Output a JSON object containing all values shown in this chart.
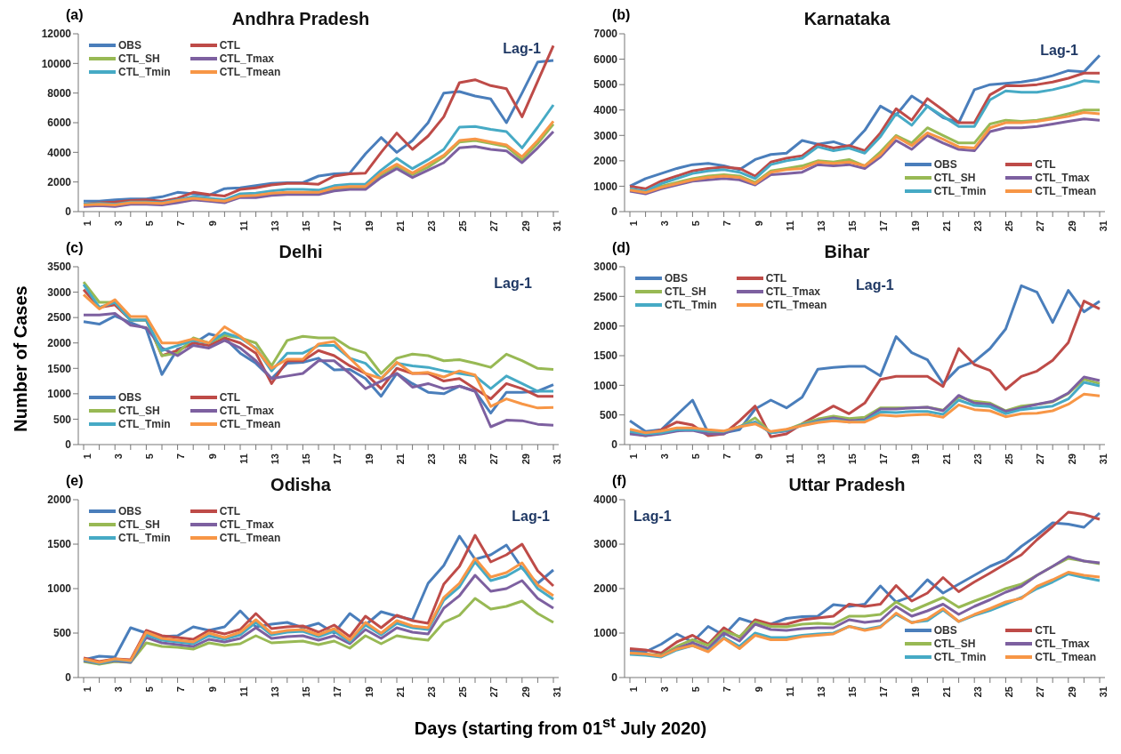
{
  "chart_data": [
    {
      "type": "line",
      "title": "Andhra Pradesh",
      "annotations": [
        "(a)",
        "Lag-1"
      ],
      "legend": "top left",
      "categories": [
        "1",
        null,
        "3",
        null,
        "5",
        null,
        "7",
        null,
        "9",
        null,
        "11",
        null,
        "13",
        null,
        "15",
        null,
        "17",
        null,
        "19",
        null,
        "21",
        null,
        "23",
        null,
        "25",
        null,
        "27",
        null,
        "29",
        null,
        "31"
      ],
      "ylim": [
        0,
        12000
      ],
      "yticks": [
        0,
        2000,
        4000,
        6000,
        8000,
        10000,
        12000
      ],
      "series": [
        {
          "name": "OBS",
          "color": "#4a7ebb",
          "values": [
            700,
            700,
            800,
            850,
            850,
            1000,
            1300,
            1200,
            1100,
            1550,
            1600,
            1750,
            1900,
            1950,
            1950,
            2400,
            2550,
            2600,
            3900,
            5000,
            4000,
            4800,
            6000,
            8000,
            8100,
            7800,
            7600,
            6000,
            8000,
            10100,
            10200
          ]
        },
        {
          "name": "CTL",
          "color": "#be4b48",
          "values": [
            500,
            600,
            650,
            750,
            800,
            700,
            900,
            1300,
            1150,
            1050,
            1500,
            1600,
            1800,
            1900,
            1900,
            1850,
            2400,
            2550,
            2600,
            4000,
            5300,
            4200,
            5100,
            6400,
            8700,
            8900,
            8500,
            8300,
            6400,
            8800,
            11200
          ]
        },
        {
          "name": "CTL_SH",
          "color": "#98b954",
          "values": [
            400,
            450,
            400,
            550,
            550,
            500,
            650,
            850,
            750,
            650,
            1000,
            1000,
            1150,
            1250,
            1250,
            1250,
            1500,
            1600,
            1600,
            2500,
            3100,
            2500,
            3000,
            3700,
            4700,
            4800,
            4600,
            4400,
            3500,
            4600,
            5900
          ]
        },
        {
          "name": "CTL_Tmax",
          "color": "#7d60a0",
          "values": [
            350,
            400,
            350,
            500,
            500,
            450,
            600,
            800,
            700,
            600,
            950,
            950,
            1100,
            1150,
            1150,
            1150,
            1400,
            1500,
            1500,
            2300,
            2900,
            2300,
            2800,
            3300,
            4300,
            4400,
            4200,
            4100,
            3300,
            4300,
            5400
          ]
        },
        {
          "name": "CTL_Tmin",
          "color": "#46aac5",
          "values": [
            500,
            550,
            500,
            650,
            650,
            600,
            800,
            1000,
            900,
            800,
            1200,
            1250,
            1400,
            1500,
            1500,
            1450,
            1750,
            1850,
            1850,
            2800,
            3600,
            2900,
            3500,
            4200,
            5700,
            5750,
            5550,
            5400,
            4300,
            5700,
            7200
          ]
        },
        {
          "name": "CTL_Tmean",
          "color": "#f79646",
          "values": [
            450,
            500,
            450,
            600,
            600,
            550,
            750,
            900,
            800,
            700,
            1050,
            1100,
            1250,
            1300,
            1300,
            1300,
            1600,
            1700,
            1700,
            2600,
            3200,
            2600,
            3200,
            3800,
            4800,
            4900,
            4700,
            4500,
            3700,
            4800,
            6100
          ]
        }
      ]
    },
    {
      "type": "line",
      "title": "Karnataka",
      "annotations": [
        "(b)",
        "Lag-1"
      ],
      "legend": "bottom right",
      "categories": [
        "1",
        null,
        "3",
        null,
        "5",
        null,
        "7",
        null,
        "9",
        null,
        "11",
        null,
        "13",
        null,
        "15",
        null,
        "17",
        null,
        "19",
        null,
        "21",
        null,
        "23",
        null,
        "25",
        null,
        "27",
        null,
        "29",
        null,
        "31"
      ],
      "ylim": [
        0,
        7000
      ],
      "yticks": [
        0,
        1000,
        2000,
        3000,
        4000,
        5000,
        6000,
        7000
      ],
      "series": [
        {
          "name": "OBS",
          "color": "#4a7ebb",
          "values": [
            1000,
            1300,
            1500,
            1700,
            1850,
            1900,
            1800,
            1650,
            2050,
            2250,
            2300,
            2800,
            2650,
            2750,
            2550,
            3200,
            4150,
            3800,
            4550,
            4150,
            3700,
            3500,
            4800,
            5000,
            5050,
            5100,
            5200,
            5350,
            5550,
            5500,
            6150
          ]
        },
        {
          "name": "CTL",
          "color": "#be4b48",
          "values": [
            1000,
            900,
            1200,
            1400,
            1600,
            1700,
            1750,
            1700,
            1400,
            1950,
            2100,
            2200,
            2650,
            2500,
            2600,
            2400,
            3100,
            4050,
            3600,
            4450,
            4000,
            3500,
            3500,
            4600,
            4950,
            4950,
            5000,
            5100,
            5250,
            5450,
            5450
          ]
        },
        {
          "name": "CTL_SH",
          "color": "#98b954",
          "values": [
            850,
            750,
            1000,
            1150,
            1300,
            1400,
            1450,
            1400,
            1150,
            1600,
            1700,
            1800,
            2000,
            1950,
            2050,
            1800,
            2350,
            3000,
            2700,
            3300,
            3000,
            2700,
            2700,
            3450,
            3600,
            3550,
            3600,
            3700,
            3850,
            4000,
            4000
          ]
        },
        {
          "name": "CTL_Tmax",
          "color": "#7d60a0",
          "values": [
            800,
            700,
            900,
            1050,
            1200,
            1250,
            1300,
            1250,
            1050,
            1450,
            1500,
            1550,
            1850,
            1800,
            1850,
            1700,
            2150,
            2800,
            2450,
            3000,
            2700,
            2450,
            2400,
            3150,
            3300,
            3300,
            3350,
            3450,
            3550,
            3650,
            3600
          ]
        },
        {
          "name": "CTL_Tmin",
          "color": "#46aac5",
          "values": [
            900,
            800,
            1100,
            1300,
            1500,
            1600,
            1650,
            1550,
            1300,
            1850,
            2000,
            2100,
            2550,
            2400,
            2500,
            2300,
            2950,
            3850,
            3400,
            4150,
            3750,
            3350,
            3350,
            4400,
            4750,
            4700,
            4700,
            4800,
            4950,
            5150,
            5100
          ]
        },
        {
          "name": "CTL_Tmean",
          "color": "#f79646",
          "values": [
            850,
            750,
            950,
            1100,
            1250,
            1350,
            1400,
            1350,
            1100,
            1550,
            1650,
            1700,
            1950,
            1900,
            1950,
            1800,
            2250,
            2950,
            2600,
            3100,
            2850,
            2550,
            2500,
            3300,
            3500,
            3500,
            3550,
            3650,
            3750,
            3900,
            3850
          ]
        }
      ]
    },
    {
      "type": "line",
      "title": "Delhi",
      "annotations": [
        "(c)",
        "Lag-1"
      ],
      "legend": "bottom left",
      "ylabel": "Number of Cases",
      "categories": [
        "1",
        null,
        "3",
        null,
        "5",
        null,
        "7",
        null,
        "9",
        null,
        "11",
        null,
        "13",
        null,
        "15",
        null,
        "17",
        null,
        "19",
        null,
        "21",
        null,
        "23",
        null,
        "25",
        null,
        "27",
        null,
        "29",
        null,
        "31"
      ],
      "ylim": [
        0,
        3500
      ],
      "yticks": [
        0,
        500,
        1000,
        1500,
        2000,
        2500,
        3000,
        3500
      ],
      "series": [
        {
          "name": "OBS",
          "color": "#4a7ebb",
          "values": [
            2420,
            2370,
            2530,
            2400,
            2280,
            1380,
            1880,
            1980,
            2180,
            2100,
            1800,
            1600,
            1300,
            1600,
            1620,
            1700,
            1470,
            1480,
            1300,
            950,
            1400,
            1200,
            1030,
            1000,
            1150,
            1050,
            620,
            1030,
            1030,
            1050,
            1180
          ]
        },
        {
          "name": "CTL",
          "color": "#be4b48",
          "values": [
            3050,
            2700,
            2750,
            2450,
            2450,
            1750,
            1850,
            2000,
            1950,
            2100,
            2000,
            1800,
            1200,
            1650,
            1650,
            1850,
            1750,
            1550,
            1400,
            1100,
            1500,
            1400,
            1400,
            1250,
            1300,
            1100,
            900,
            1200,
            1100,
            950,
            950
          ]
        },
        {
          "name": "CTL_SH",
          "color": "#98b954",
          "values": [
            3200,
            2800,
            2800,
            2450,
            2450,
            1750,
            1800,
            2100,
            2000,
            2150,
            2100,
            2000,
            1550,
            2050,
            2130,
            2100,
            2100,
            1900,
            1800,
            1400,
            1700,
            1780,
            1750,
            1650,
            1670,
            1600,
            1520,
            1780,
            1650,
            1500,
            1480
          ]
        },
        {
          "name": "CTL_Tmax",
          "color": "#7d60a0",
          "values": [
            2550,
            2550,
            2580,
            2350,
            2300,
            1900,
            1750,
            1950,
            1900,
            2050,
            1900,
            1650,
            1300,
            1350,
            1400,
            1650,
            1650,
            1400,
            1100,
            1250,
            1400,
            1130,
            1200,
            1100,
            1150,
            1050,
            350,
            480,
            470,
            400,
            380
          ]
        },
        {
          "name": "CTL_Tmin",
          "color": "#46aac5",
          "values": [
            3150,
            2700,
            2800,
            2450,
            2450,
            1850,
            1950,
            2050,
            2000,
            2200,
            2100,
            1900,
            1450,
            1800,
            1800,
            1950,
            1950,
            1700,
            1600,
            1300,
            1600,
            1550,
            1520,
            1450,
            1400,
            1350,
            1100,
            1350,
            1200,
            1050,
            1050
          ]
        },
        {
          "name": "CTL_Tmean",
          "color": "#f79646",
          "values": [
            2950,
            2670,
            2850,
            2520,
            2520,
            2000,
            2000,
            2080,
            2000,
            2320,
            2130,
            1880,
            1500,
            1680,
            1680,
            1980,
            2030,
            1700,
            1400,
            1300,
            1620,
            1400,
            1420,
            1330,
            1450,
            1370,
            750,
            900,
            800,
            720,
            730
          ]
        }
      ]
    },
    {
      "type": "line",
      "title": "Bihar",
      "annotations": [
        "(d)",
        "Lag-1"
      ],
      "legend": "top left",
      "categories": [
        "1",
        null,
        "3",
        null,
        "5",
        null,
        "7",
        null,
        "9",
        null,
        "11",
        null,
        "13",
        null,
        "15",
        null,
        "17",
        null,
        "19",
        null,
        "21",
        null,
        "23",
        null,
        "25",
        null,
        "27",
        null,
        "29",
        null,
        "31"
      ],
      "ylim": [
        0,
        3000
      ],
      "yticks": [
        0,
        500,
        1000,
        1500,
        2000,
        2500,
        3000
      ],
      "series": [
        {
          "name": "OBS",
          "color": "#4a7ebb",
          "values": [
            400,
            220,
            250,
            500,
            750,
            200,
            200,
            250,
            600,
            750,
            620,
            800,
            1270,
            1300,
            1320,
            1320,
            1160,
            1820,
            1550,
            1430,
            1030,
            1300,
            1400,
            1620,
            1950,
            2680,
            2570,
            2060,
            2600,
            2240,
            2420
          ]
        },
        {
          "name": "CTL",
          "color": "#be4b48",
          "values": [
            200,
            180,
            250,
            380,
            330,
            150,
            180,
            400,
            650,
            130,
            180,
            350,
            500,
            650,
            520,
            700,
            1100,
            1150,
            1150,
            1150,
            980,
            1620,
            1350,
            1250,
            930,
            1150,
            1240,
            1420,
            1720,
            2420,
            2290
          ]
        },
        {
          "name": "CTL_SH",
          "color": "#98b954",
          "values": [
            200,
            150,
            200,
            250,
            260,
            200,
            200,
            300,
            450,
            200,
            250,
            350,
            430,
            480,
            440,
            460,
            620,
            620,
            620,
            630,
            580,
            800,
            730,
            700,
            570,
            650,
            680,
            720,
            860,
            1100,
            1030
          ]
        },
        {
          "name": "CTL_Tmax",
          "color": "#7d60a0",
          "values": [
            180,
            150,
            180,
            230,
            240,
            180,
            180,
            300,
            380,
            200,
            230,
            330,
            400,
            450,
            400,
            420,
            600,
            600,
            620,
            630,
            570,
            830,
            700,
            680,
            560,
            620,
            680,
            730,
            870,
            1140,
            1080
          ]
        },
        {
          "name": "CTL_Tmin",
          "color": "#46aac5",
          "values": [
            220,
            180,
            200,
            250,
            250,
            230,
            220,
            300,
            380,
            200,
            240,
            330,
            390,
            420,
            380,
            400,
            550,
            540,
            560,
            560,
            510,
            750,
            660,
            640,
            520,
            590,
            620,
            650,
            770,
            1050,
            990
          ]
        },
        {
          "name": "CTL_Tmean",
          "color": "#f79646",
          "values": [
            260,
            200,
            230,
            280,
            280,
            250,
            230,
            300,
            350,
            220,
            260,
            320,
            370,
            400,
            380,
            380,
            500,
            480,
            500,
            510,
            460,
            670,
            590,
            570,
            470,
            520,
            530,
            570,
            680,
            850,
            820
          ]
        }
      ]
    },
    {
      "type": "line",
      "title": "Odisha",
      "annotations": [
        "(e)",
        "Lag-1"
      ],
      "legend": "top left",
      "xlabel": "Days (starting from 01$^{st}$ July 2020)",
      "categories": [
        "1",
        null,
        "3",
        null,
        "5",
        null,
        "7",
        null,
        "9",
        null,
        "11",
        null,
        "13",
        null,
        "15",
        null,
        "17",
        null,
        "19",
        null,
        "21",
        null,
        "23",
        null,
        "25",
        null,
        "27",
        null,
        "29",
        null,
        "31"
      ],
      "ylim": [
        0,
        2000
      ],
      "yticks": [
        0,
        500,
        1000,
        1500,
        2000
      ],
      "series": [
        {
          "name": "OBS",
          "color": "#4a7ebb",
          "values": [
            200,
            240,
            230,
            560,
            500,
            460,
            470,
            570,
            530,
            570,
            750,
            570,
            600,
            620,
            560,
            610,
            500,
            720,
            590,
            740,
            690,
            650,
            1060,
            1260,
            1590,
            1330,
            1380,
            1490,
            1230,
            1060,
            1210
          ]
        },
        {
          "name": "CTL",
          "color": "#be4b48",
          "values": [
            220,
            180,
            210,
            200,
            530,
            470,
            450,
            430,
            530,
            490,
            540,
            720,
            550,
            570,
            580,
            510,
            590,
            460,
            690,
            560,
            700,
            640,
            610,
            1050,
            1250,
            1600,
            1300,
            1380,
            1500,
            1200,
            1030
          ]
        },
        {
          "name": "CTL_SH",
          "color": "#98b954",
          "values": [
            180,
            150,
            180,
            170,
            390,
            350,
            340,
            320,
            390,
            360,
            380,
            470,
            390,
            400,
            410,
            370,
            410,
            330,
            470,
            380,
            470,
            440,
            420,
            620,
            700,
            890,
            770,
            800,
            860,
            720,
            620
          ]
        },
        {
          "name": "CTL_Tmax",
          "color": "#7d60a0",
          "values": [
            190,
            160,
            190,
            170,
            450,
            390,
            370,
            350,
            430,
            400,
            440,
            560,
            440,
            460,
            470,
            420,
            470,
            380,
            540,
            440,
            560,
            510,
            490,
            780,
            920,
            1150,
            970,
            1000,
            1090,
            890,
            780
          ]
        },
        {
          "name": "CTL_Tmin",
          "color": "#46aac5",
          "values": [
            200,
            160,
            200,
            180,
            480,
            420,
            400,
            380,
            470,
            430,
            480,
            620,
            480,
            510,
            520,
            460,
            520,
            400,
            590,
            480,
            610,
            560,
            540,
            870,
            1020,
            1300,
            1090,
            1140,
            1240,
            1000,
            880
          ]
        },
        {
          "name": "CTL_Tmean",
          "color": "#f79646",
          "values": [
            210,
            170,
            210,
            190,
            510,
            440,
            420,
            400,
            500,
            450,
            510,
            650,
            500,
            530,
            540,
            480,
            550,
            420,
            620,
            500,
            640,
            580,
            560,
            900,
            1060,
            1340,
            1130,
            1180,
            1290,
            1040,
            920
          ]
        }
      ]
    },
    {
      "type": "line",
      "title": "Uttar Pradesh",
      "annotations": [
        "(f)",
        "Lag-1"
      ],
      "legend": "bottom right",
      "categories": [
        "1",
        null,
        "3",
        null,
        "5",
        null,
        "7",
        null,
        "9",
        null,
        "11",
        null,
        "13",
        null,
        "15",
        null,
        "17",
        null,
        "19",
        null,
        "21",
        null,
        "23",
        null,
        "25",
        null,
        "27",
        null,
        "29",
        null,
        "31"
      ],
      "ylim": [
        0,
        4000
      ],
      "yticks": [
        0,
        1000,
        2000,
        3000,
        4000
      ],
      "series": [
        {
          "name": "OBS",
          "color": "#4a7ebb",
          "values": [
            600,
            580,
            750,
            980,
            800,
            1150,
            950,
            1330,
            1220,
            1200,
            1330,
            1370,
            1380,
            1640,
            1600,
            1650,
            2060,
            1700,
            1830,
            2200,
            1900,
            2100,
            2300,
            2500,
            2650,
            2950,
            3200,
            3480,
            3450,
            3380,
            3700
          ]
        },
        {
          "name": "CTL",
          "color": "#be4b48",
          "values": [
            650,
            620,
            550,
            800,
            950,
            750,
            1120,
            900,
            1300,
            1200,
            1200,
            1300,
            1340,
            1380,
            1650,
            1600,
            1650,
            2070,
            1720,
            1900,
            2250,
            1930,
            2150,
            2350,
            2560,
            2760,
            3100,
            3400,
            3720,
            3670,
            3560
          ]
        },
        {
          "name": "CTL_SH",
          "color": "#98b954",
          "values": [
            550,
            530,
            500,
            700,
            850,
            720,
            1050,
            920,
            1250,
            1150,
            1140,
            1200,
            1220,
            1200,
            1380,
            1380,
            1420,
            1700,
            1500,
            1650,
            1800,
            1580,
            1720,
            1850,
            2000,
            2100,
            2300,
            2500,
            2680,
            2620,
            2560
          ]
        },
        {
          "name": "CTL_Tmax",
          "color": "#7d60a0",
          "values": [
            540,
            520,
            480,
            650,
            780,
            650,
            1000,
            820,
            1200,
            1080,
            1060,
            1100,
            1120,
            1120,
            1300,
            1240,
            1280,
            1600,
            1380,
            1500,
            1650,
            1420,
            1600,
            1750,
            1920,
            2050,
            2300,
            2500,
            2720,
            2620,
            2580
          ]
        },
        {
          "name": "CTL_Tmin",
          "color": "#46aac5",
          "values": [
            520,
            500,
            460,
            620,
            720,
            600,
            900,
            700,
            1000,
            900,
            900,
            950,
            980,
            1000,
            1150,
            1080,
            1150,
            1420,
            1240,
            1280,
            1520,
            1260,
            1400,
            1510,
            1650,
            1800,
            2000,
            2150,
            2330,
            2250,
            2180
          ]
        },
        {
          "name": "CTL_Tmean",
          "color": "#f79646",
          "values": [
            550,
            530,
            480,
            640,
            720,
            580,
            880,
            650,
            950,
            850,
            850,
            920,
            950,
            980,
            1150,
            1060,
            1130,
            1450,
            1230,
            1320,
            1550,
            1260,
            1420,
            1550,
            1700,
            1780,
            2050,
            2200,
            2370,
            2300,
            2260
          ]
        }
      ]
    }
  ]
}
